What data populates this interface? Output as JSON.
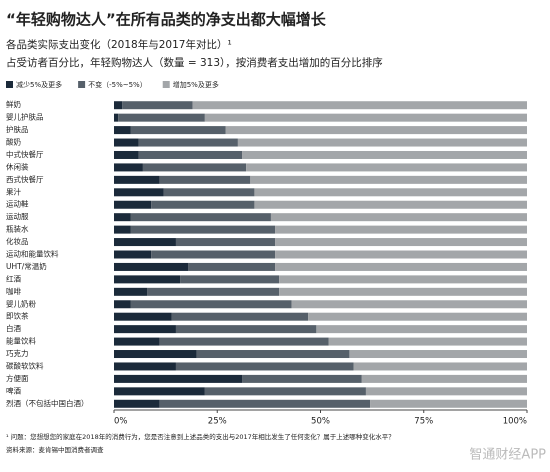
{
  "chart_data": {
    "type": "stacked_bar_horizontal",
    "title": "“年轻购物达人”在所有品类的净支出都大幅增长",
    "subtitle": "各品类实际支出变化（2018年与2017年对比）¹",
    "subtitle2": "占受访者百分比，年轻购物达人（数量 = 313），按消费者支出增加的百分比排序",
    "categories": [
      "鲜奶",
      "婴儿护肤品",
      "护肤品",
      "酸奶",
      "中式快餐厅",
      "休闲装",
      "西式快餐厅",
      "果汁",
      "运动鞋",
      "运动服",
      "瓶装水",
      "化妆品",
      "运动和能量饮料",
      "UHT/常温奶",
      "红酒",
      "咖啡",
      "婴儿奶粉",
      "即饮茶",
      "白酒",
      "能量饮料",
      "巧克力",
      "碳酸软饮料",
      "方便面",
      "啤酒",
      "烈酒（不包括中国白酒）"
    ],
    "series": [
      {
        "name": "减少5%及更多",
        "color": "#1b2a3a",
        "values": [
          2,
          1,
          4,
          6,
          6,
          7,
          11,
          12,
          9,
          4,
          4,
          15,
          9,
          18,
          16,
          8,
          4,
          14,
          15,
          11,
          20,
          15,
          31,
          22,
          11
        ]
      },
      {
        "name": "不变（-5%~5%）",
        "color": "#56606a",
        "values": [
          17,
          21,
          23,
          24,
          25,
          25,
          22,
          22,
          25,
          34,
          35,
          24,
          30,
          21,
          24,
          32,
          39,
          33,
          34,
          41,
          37,
          43,
          29,
          39,
          51
        ]
      },
      {
        "name": "增加5%及更多",
        "color": "#a3a6a9",
        "values": [
          81,
          78,
          73,
          70,
          69,
          68,
          67,
          66,
          66,
          62,
          61,
          61,
          61,
          61,
          60,
          60,
          57,
          53,
          51,
          48,
          43,
          42,
          40,
          39,
          38
        ]
      }
    ],
    "xlim": [
      0,
      100
    ],
    "xticks": [
      {
        "value": 0,
        "label": "0%"
      },
      {
        "value": 25,
        "label": "25%"
      },
      {
        "value": 50,
        "label": "50%"
      },
      {
        "value": 75,
        "label": "75%"
      },
      {
        "value": 100,
        "label": "100%"
      }
    ],
    "footnote": "¹ 问题：您想想您的家庭在2018年的消费行为，您是否注意到上述品类的支出与2017年相比发生了任何变化？属于上述哪种变化水平？",
    "source": "资料来源：麦肯锡中国消费者调查",
    "watermark": "智通财经APP"
  }
}
